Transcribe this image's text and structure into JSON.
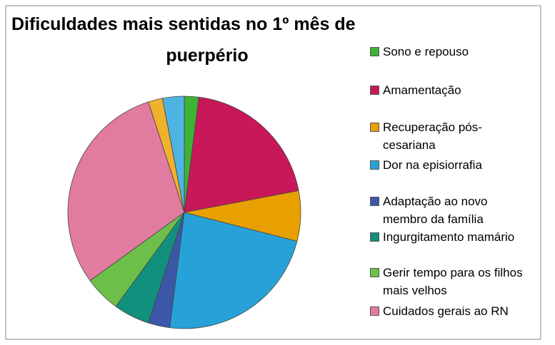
{
  "chart_data": {
    "type": "pie",
    "title": [
      "Dificuldades mais sentidas no 1º mês de",
      "puerpério"
    ],
    "categories": [
      "Sono e repouso",
      "Amamentação",
      "Recuperação pós-cesariana",
      "Dor na episiorrafia",
      "Adaptação ao novo membro da família",
      "Ingurgitamento mamário",
      "Gerir tempo para os filhos mais velhos",
      "Cuidados gerais ao RN",
      null,
      null
    ],
    "values": [
      2,
      20,
      7,
      23,
      3,
      5,
      5,
      30,
      2,
      3
    ],
    "colors": [
      "#3fb236",
      "#c8185a",
      "#e8a000",
      "#27a2d8",
      "#3d57a8",
      "#12907e",
      "#6cc04a",
      "#e27ba0",
      "#f0b12c",
      "#4fb4e4"
    ],
    "legend": "right"
  }
}
